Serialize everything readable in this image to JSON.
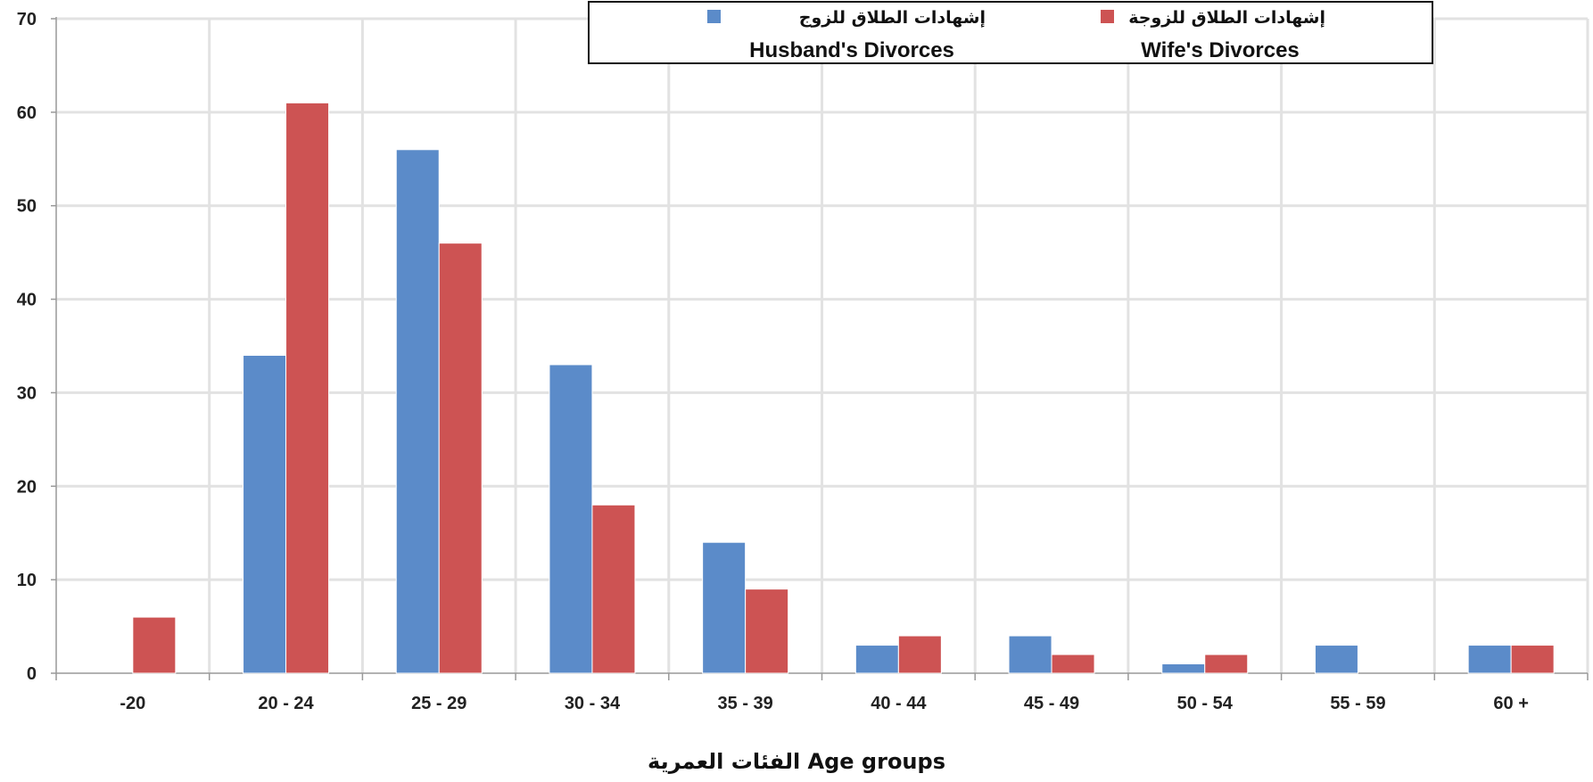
{
  "chart_data": {
    "type": "bar",
    "categories": [
      "-20",
      "20 - 24",
      "25 - 29",
      "30 - 34",
      "35 - 39",
      "40 - 44",
      "45 - 49",
      "50 - 54",
      "55 - 59",
      "60 +"
    ],
    "series": [
      {
        "name": "إشهادات الطلاق للزوج Husband's Divorces",
        "name_ar": "إشهادات الطلاق للزوج",
        "name_en": "Husband's Divorces",
        "color": "#5b8bc9",
        "values": [
          0,
          34,
          56,
          33,
          14,
          3,
          4,
          1,
          3,
          3
        ]
      },
      {
        "name": "إشهادات الطلاق للزوجة Wife's Divorces",
        "name_ar": "إشهادات الطلاق للزوجة",
        "name_en": "Wife's Divorces",
        "color": "#cd5353",
        "values": [
          6,
          61,
          46,
          18,
          9,
          4,
          2,
          2,
          0,
          3
        ]
      }
    ],
    "title": "",
    "xlabel": "الفئات العمرية Age groups",
    "ylabel": "",
    "ylim": [
      0,
      70
    ],
    "yticks": [
      0,
      10,
      20,
      30,
      40,
      50,
      60,
      70
    ],
    "grid": true,
    "legend_position": "top"
  }
}
